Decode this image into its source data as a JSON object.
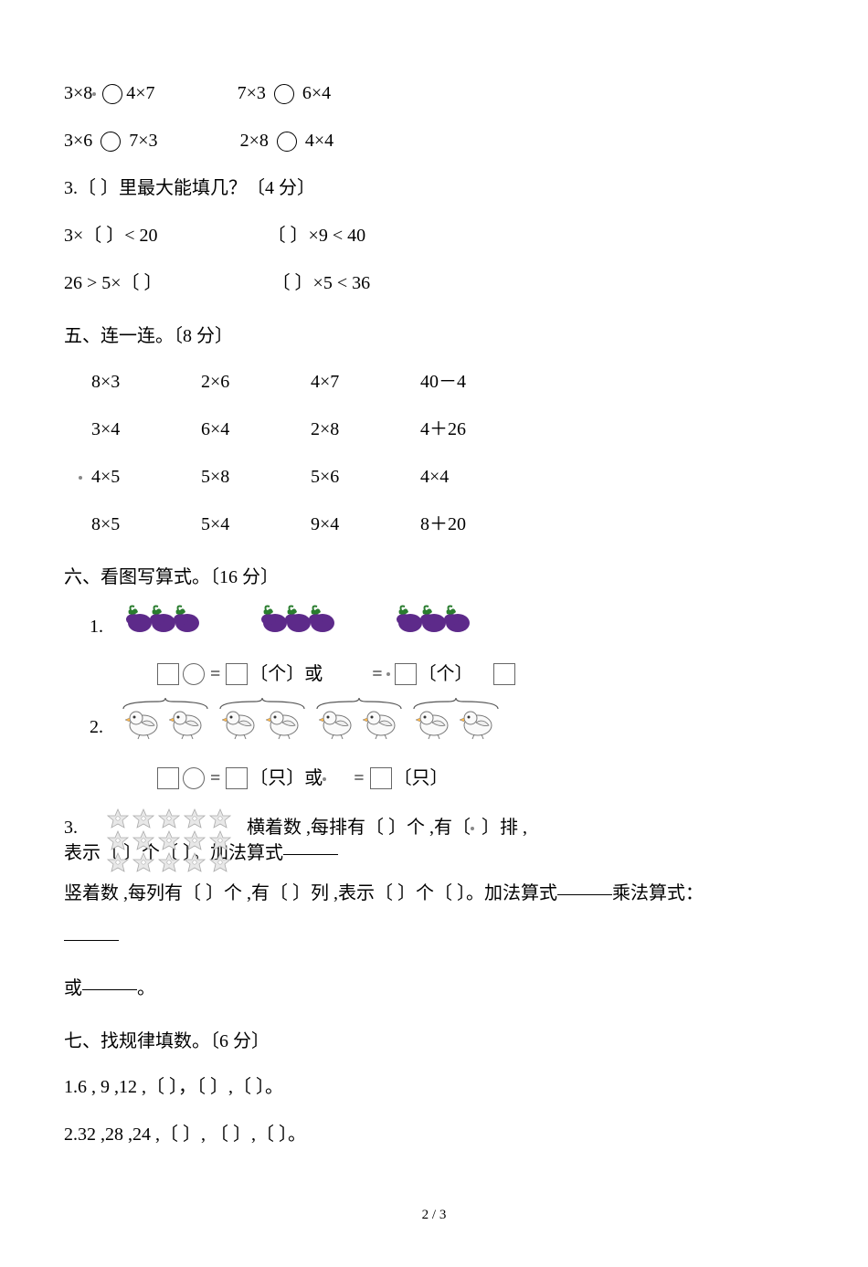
{
  "compare": {
    "r1c1_left": "3×8",
    "r1c1_right": "4×7",
    "r1c2_left": "7×3",
    "r1c2_right": "6×4",
    "r2c1_left": "3×6",
    "r2c1_right": "7×3",
    "r2c2_left": "2×8",
    "r2c2_right": "4×4"
  },
  "q3": {
    "title": "3.〔   〕里最大能填几？〔4 分〕",
    "r1c1": "3×〔   〕< 20",
    "r1c2": "〔   〕×9 < 40",
    "r2c1": "26 > 5×〔   〕",
    "r2c2": "〔   〕×5 < 36"
  },
  "s5": {
    "title": "五、连一连。〔8 分〕",
    "colors": {
      "text": "#000000"
    },
    "rows": [
      [
        "8×3",
        "2×6",
        "4×7",
        "40－4"
      ],
      [
        "3×4",
        "6×4",
        "2×8",
        "4＋26"
      ],
      [
        "4×5",
        "5×8",
        "5×6",
        "4×4"
      ],
      [
        "8×5",
        "5×4",
        "9×4",
        "8＋20"
      ]
    ]
  },
  "s6": {
    "title": "六、看图写算式。〔16 分〕",
    "q1_label": "1.",
    "q2_label": "2.",
    "q3_label": "3.",
    "unit1": "〔个〕或",
    "unit1b": "〔个〕",
    "unit2": "〔只〕或",
    "unit2b": "〔只〕",
    "eggplant": {
      "groups": 3,
      "per_group": 3,
      "fill": "#5d2a8a",
      "leaf": "#2a7d2f"
    },
    "bird": {
      "groups": 4,
      "per_group": 2,
      "stroke": "#777",
      "fill": "#f5f5f5"
    },
    "q3_line1_a": "横着数 ,每排有〔   〕个 ,有〔",
    "q3_line1_b": "〕排 ,",
    "q3_line2": "表示〔   〕个〔   〕。加法算式",
    "q3_line3_a": "竖着数 ,每列有〔   〕个 ,有〔   〕列 ,表示〔   〕个〔   〕。加法算式",
    "q3_line3_b": "乘法算式：",
    "q3_or": "或",
    "q3_period": "。",
    "star": {
      "rows": 3,
      "cols": 5,
      "fill": "#e8e8e8",
      "stroke": "#aaa"
    }
  },
  "s7": {
    "title": "七、找规律填数。〔6 分〕",
    "q1": "1.6 , 9 ,12 ,〔   〕，〔   〕,〔   〕。",
    "q2": "2.32 ,28 ,24 ,〔   〕, 〔   〕,〔   〕。"
  },
  "footer": "2 / 3"
}
